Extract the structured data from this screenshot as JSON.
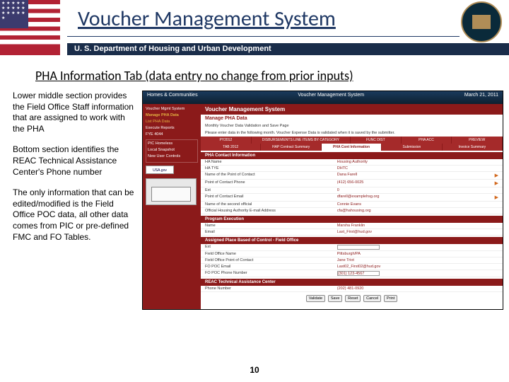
{
  "header": {
    "title": "Voucher Management System",
    "dept_bar": "U. S. Department of Housing and Urban Development",
    "flag_stars": "★ ★ ★ ★\n★ ★ ★ ★\n★ ★ ★ ★\n★ ★ ★ ★"
  },
  "subtitle": "PHA Information Tab (data entry no change from prior inputs)",
  "paragraphs": {
    "p1": "Lower middle section provides the Field Office Staff information that are assigned to work with the PHA",
    "p2": "Bottom section identifies the REAC Technical Assistance Center's Phone number",
    "p3": "The only information that can be edited/modified is the Field Office POC data, all other data comes from PIC or pre-defined FMC and FO Tables."
  },
  "screenshot": {
    "banner_left": "Homes & Communities",
    "banner_right_1": "Voucher Management System",
    "banner_date": "March 21, 2011",
    "sidebar": {
      "items": [
        "Voucher Mgmt System",
        "Manage PHA Data",
        "List PHA Data",
        "Execute Reports",
        "FYE 4044"
      ],
      "box_items": [
        "PIC Homeless",
        "Local Snapshot",
        "New User Controls"
      ],
      "usa_label": "USA.gov"
    },
    "main": {
      "title": "Voucher Management System",
      "sub": "Manage PHA Data",
      "note": "Monthly Voucher Data Validation and Save Page",
      "note2": "Please enter data in the following month. Voucher Expense Data is validated when it is saved by the submitter.",
      "tabs_top": [
        "PY2012",
        "DISBURSEMENTS LINE ITEMS BY CATEGORY",
        "",
        "FUNC DIST",
        "PHA ACC",
        "",
        "PREVIEW"
      ],
      "tabs_mid": [
        "TAB 2012",
        "HAP Contract Summary",
        "",
        "Submission",
        "Invoice Summary"
      ],
      "active_tab": "PHA Cont Information",
      "section1": "PHA Contact Information",
      "rows1": [
        {
          "lbl": "HA Name",
          "val": "Housing Authority"
        },
        {
          "lbl": "HA TYE",
          "val": "DHTC"
        },
        {
          "lbl": "Name of the Point of Contact",
          "val": "Dana Farell",
          "arrow": true
        },
        {
          "lbl": "Point of Contact Phone",
          "val": "(412) 656-0025",
          "arrow": true
        },
        {
          "lbl": "Ext",
          "val": "0"
        },
        {
          "lbl": "Point of Contact Email",
          "val": "dfarell@examplehsg.org",
          "arrow": true
        },
        {
          "lbl": "Name of the second official",
          "val": "Connie Evans"
        },
        {
          "lbl": "Official Housing Authority E-mail Address",
          "val": "cfa@hahousing.org"
        }
      ],
      "section2": "Program Execution",
      "rows2": [
        {
          "lbl": "Name",
          "val": "Marsha Franklin"
        },
        {
          "lbl": "Email",
          "val": "Last_First@hud.gov"
        }
      ],
      "section3": "Assigned Place Based of Control - Field Office",
      "rows3": [
        {
          "lbl": "Ext",
          "val": "",
          "input": true
        },
        {
          "lbl": "Field Office Name",
          "val": "Pittsburgh/PA"
        },
        {
          "lbl": "Field Office Point of Contact",
          "val": "Jane Triot"
        },
        {
          "lbl": "FO POC Email",
          "val": "Last02_First02@hud.gov"
        },
        {
          "lbl": "FO POC Phone Number",
          "val": "(301) 123-4567",
          "input": true
        }
      ],
      "section4": "REAC Technical Assistance Center",
      "rows4": [
        {
          "lbl": "Phone Number",
          "val": "(202) 481-0920"
        }
      ],
      "buttons": [
        "Validate",
        "Save",
        "Reset",
        "Cancel",
        "Print"
      ]
    }
  },
  "page_number": "10",
  "colors": {
    "title_color": "#1f3864",
    "dept_bar_bg": "#1a2d4a",
    "hud_red": "#8b1a1a",
    "hud_tab": "#a52a2a"
  }
}
